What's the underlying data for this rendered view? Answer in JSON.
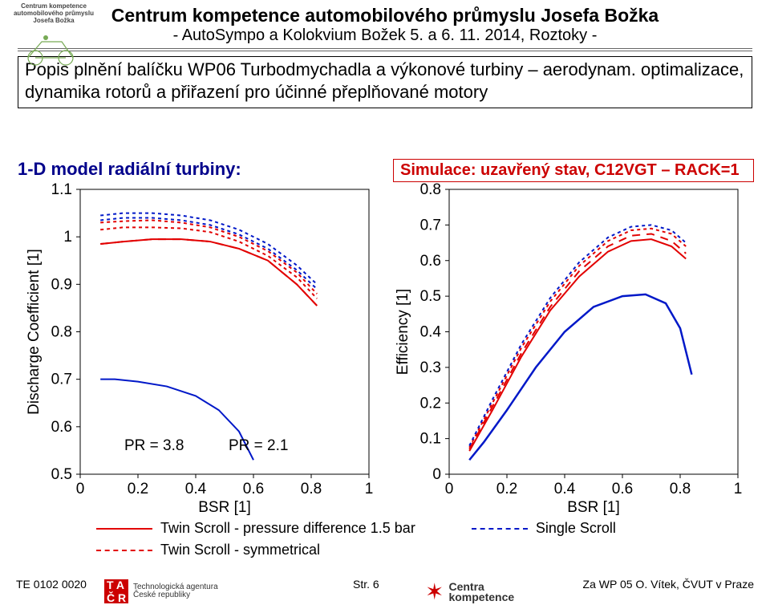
{
  "header": {
    "logo_caption": "Centrum kompetence automobilového průmyslu Josefa Božka",
    "title_main": "Centrum kompetence automobilového průmyslu Josefa Božka",
    "title_sub": "- AutoSympo a Kolokvium Božek 5. a 6. 11. 2014, Roztoky -"
  },
  "description": "Popis plnění balíčku WP06 Turbodmychadla a výkonové turbiny – aerodynam. optimalizace, dynamika rotorů a přiřazení pro účinné přeplňované motory",
  "section_label": "1-D model radiální turbiny:",
  "sim_label": "Simulace: uzavřený stav, C12VGT – RACK=1",
  "chart_left": {
    "type": "line",
    "xlabel": "BSR [1]",
    "ylabel": "Discharge Coefficient [1]",
    "xlim": [
      0,
      1
    ],
    "ylim": [
      0.5,
      1.1
    ],
    "xticks": [
      0,
      0.2,
      0.4,
      0.6,
      0.8,
      1
    ],
    "yticks": [
      0.5,
      0.6,
      0.7,
      0.8,
      0.9,
      1,
      1.1
    ],
    "tick_fontsize": 19,
    "label_fontsize": 19,
    "grid_color": "#f0f0f0",
    "legend": [
      {
        "label": "PR = 3.8",
        "color": "#e20000"
      },
      {
        "label": "PR = 2.1",
        "color": "#0018c8"
      }
    ],
    "series": [
      {
        "name": "ts-pd-38",
        "color": "#e20000",
        "dash": "none",
        "width": 2,
        "x": [
          0.07,
          0.15,
          0.25,
          0.35,
          0.45,
          0.55,
          0.65,
          0.75,
          0.82
        ],
        "y": [
          0.985,
          0.99,
          0.995,
          0.995,
          0.99,
          0.975,
          0.95,
          0.9,
          0.855
        ]
      },
      {
        "name": "ts-sym-38",
        "color": "#e20000",
        "dash": "10,8",
        "width": 2,
        "x": [
          0.07,
          0.15,
          0.25,
          0.35,
          0.45,
          0.55,
          0.65,
          0.75,
          0.82
        ],
        "y": [
          0.985,
          0.99,
          0.995,
          0.995,
          0.99,
          0.975,
          0.95,
          0.9,
          0.855
        ]
      },
      {
        "name": "ss-38a",
        "color": "#e20000",
        "dash": "4,4",
        "width": 2,
        "x": [
          0.07,
          0.15,
          0.25,
          0.35,
          0.45,
          0.55,
          0.65,
          0.75,
          0.82
        ],
        "y": [
          1.015,
          1.02,
          1.02,
          1.018,
          1.01,
          0.99,
          0.96,
          0.915,
          0.87
        ]
      },
      {
        "name": "ss-38b",
        "color": "#e20000",
        "dash": "4,4",
        "width": 2,
        "x": [
          0.07,
          0.15,
          0.25,
          0.35,
          0.45,
          0.55,
          0.65,
          0.75,
          0.82
        ],
        "y": [
          1.03,
          1.033,
          1.035,
          1.03,
          1.02,
          1.0,
          0.97,
          0.925,
          0.88
        ]
      },
      {
        "name": "ts-pd-21",
        "color": "#0018c8",
        "dash": "none",
        "width": 2,
        "x": [
          0.07,
          0.12,
          0.2,
          0.3,
          0.4,
          0.48,
          0.55,
          0.6
        ],
        "y": [
          0.7,
          0.7,
          0.695,
          0.685,
          0.665,
          0.635,
          0.59,
          0.53
        ]
      },
      {
        "name": "ss-21a",
        "color": "#0018c8",
        "dash": "4,4",
        "width": 2,
        "x": [
          0.07,
          0.15,
          0.25,
          0.35,
          0.45,
          0.55,
          0.65,
          0.75,
          0.82
        ],
        "y": [
          1.035,
          1.04,
          1.04,
          1.035,
          1.025,
          1.005,
          0.975,
          0.93,
          0.89
        ]
      },
      {
        "name": "ss-21b",
        "color": "#0018c8",
        "dash": "4,4",
        "width": 2,
        "x": [
          0.07,
          0.15,
          0.25,
          0.35,
          0.45,
          0.55,
          0.65,
          0.75,
          0.82
        ],
        "y": [
          1.045,
          1.05,
          1.05,
          1.045,
          1.035,
          1.015,
          0.985,
          0.94,
          0.9
        ]
      }
    ]
  },
  "chart_right": {
    "type": "line",
    "xlabel": "BSR [1]",
    "ylabel": "Efficiency [1]",
    "xlim": [
      0,
      1
    ],
    "ylim": [
      0,
      0.8
    ],
    "xticks": [
      0,
      0.2,
      0.4,
      0.6,
      0.8,
      1
    ],
    "yticks": [
      0,
      0.1,
      0.2,
      0.3,
      0.4,
      0.5,
      0.6,
      0.7,
      0.8
    ],
    "tick_fontsize": 19,
    "label_fontsize": 19,
    "series": [
      {
        "name": "ts-pd-21",
        "color": "#0018c8",
        "dash": "none",
        "width": 2.5,
        "x": [
          0.07,
          0.12,
          0.2,
          0.3,
          0.4,
          0.5,
          0.6,
          0.68,
          0.75,
          0.8,
          0.84
        ],
        "y": [
          0.04,
          0.09,
          0.18,
          0.3,
          0.4,
          0.47,
          0.5,
          0.505,
          0.48,
          0.41,
          0.28
        ]
      },
      {
        "name": "ts-sym-38",
        "color": "#e20000",
        "dash": "10,8",
        "width": 2,
        "x": [
          0.07,
          0.15,
          0.25,
          0.35,
          0.45,
          0.55,
          0.63,
          0.7,
          0.77,
          0.82
        ],
        "y": [
          0.07,
          0.19,
          0.34,
          0.47,
          0.57,
          0.64,
          0.67,
          0.675,
          0.655,
          0.62
        ]
      },
      {
        "name": "ts-pd-38",
        "color": "#e20000",
        "dash": "none",
        "width": 2,
        "x": [
          0.07,
          0.15,
          0.25,
          0.35,
          0.45,
          0.55,
          0.63,
          0.7,
          0.77,
          0.82
        ],
        "y": [
          0.065,
          0.18,
          0.33,
          0.46,
          0.555,
          0.625,
          0.655,
          0.66,
          0.64,
          0.605
        ]
      },
      {
        "name": "ss-38",
        "color": "#e20000",
        "dash": "4,4",
        "width": 2,
        "x": [
          0.07,
          0.15,
          0.25,
          0.35,
          0.45,
          0.55,
          0.63,
          0.7,
          0.77,
          0.82
        ],
        "y": [
          0.075,
          0.2,
          0.355,
          0.485,
          0.585,
          0.655,
          0.685,
          0.69,
          0.675,
          0.64
        ]
      },
      {
        "name": "ss-21",
        "color": "#0018c8",
        "dash": "4,4",
        "width": 2,
        "x": [
          0.07,
          0.15,
          0.25,
          0.35,
          0.45,
          0.55,
          0.63,
          0.7,
          0.77,
          0.82
        ],
        "y": [
          0.08,
          0.21,
          0.365,
          0.495,
          0.595,
          0.665,
          0.695,
          0.7,
          0.685,
          0.65
        ]
      }
    ]
  },
  "legend_bottom": {
    "items": [
      {
        "swatch_color": "#e20000",
        "swatch_dash": "solid",
        "label": "Twin Scroll - pressure difference 1.5 bar"
      },
      {
        "swatch_color": "#0018c8",
        "swatch_dash": "dashed",
        "label": "Single Scroll"
      },
      {
        "swatch_color": "#e20000",
        "swatch_dash": "dashed-long",
        "label": "Twin Scroll - symmetrical"
      }
    ]
  },
  "footer": {
    "left": "TE 0102 0020",
    "mid": "Str. 6",
    "right": "Za WP 05 O. Vítek, ČVUT v Praze",
    "ta_logo": "TA ČR",
    "ta_text1": "Technologická agentura",
    "ta_text2": "České republiky",
    "ck_text1": "Centra",
    "ck_text2": "kompetence"
  }
}
